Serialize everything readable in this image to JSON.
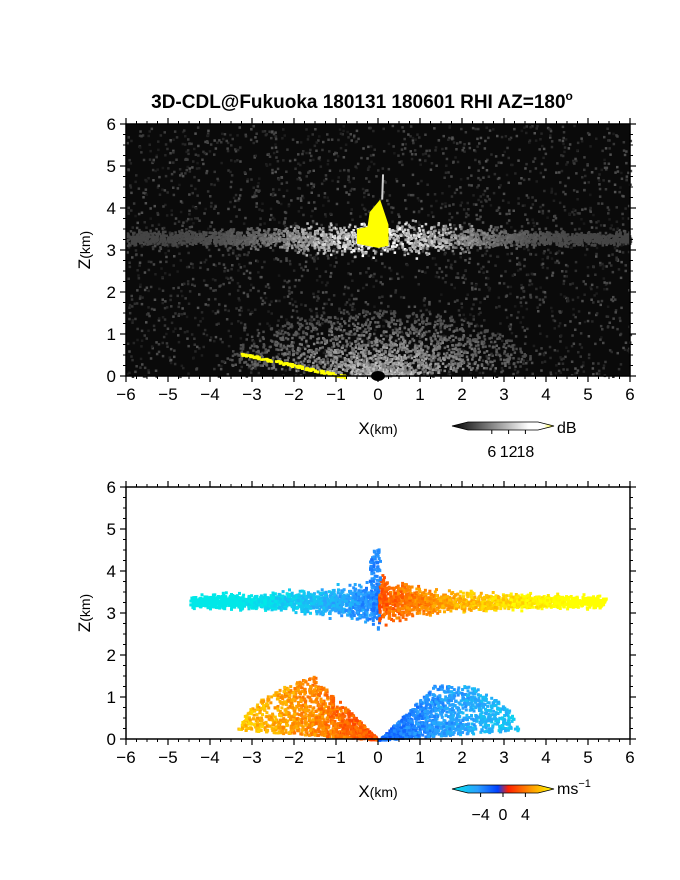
{
  "title": "3D-CDL@Fukuoka 180131 180601 RHI AZ=180",
  "title_degree": "o",
  "chart_data": [
    {
      "type": "heatmap",
      "panel": "top",
      "quantity": "backscatter",
      "xlabel_main": "X",
      "xlabel_unit": "(km)",
      "ylabel_main": "Z",
      "ylabel_unit": "(km)",
      "xlim": [
        -6,
        6
      ],
      "ylim": [
        0,
        6
      ],
      "xticks": [
        -6,
        -5,
        -4,
        -3,
        -2,
        -1,
        0,
        1,
        2,
        3,
        4,
        5,
        6
      ],
      "yticks": [
        0,
        1,
        2,
        3,
        4,
        5,
        6
      ],
      "colorbar": {
        "unit": "dB",
        "ticks": [
          6,
          12,
          18
        ],
        "range": [
          0,
          20
        ],
        "colors": [
          "#000000",
          "#ffffff",
          "#ffff00"
        ]
      },
      "features": [
        {
          "name": "cloud layer",
          "x_range": [
            -6,
            6
          ],
          "z_center": 3.3,
          "thickness": 0.5,
          "value_db": 10
        },
        {
          "name": "saturated core",
          "x_range": [
            -0.5,
            0.3
          ],
          "z_range": [
            3.1,
            4.2
          ],
          "value_db": 20
        },
        {
          "name": "near-surface fan",
          "x_range": [
            -3.5,
            3.5
          ],
          "z_range": [
            0,
            1.6
          ],
          "value_db": 8
        },
        {
          "name": "saturated ground return",
          "x_range": [
            -3.3,
            -0.8
          ],
          "z_range": [
            0,
            0.55
          ],
          "value_db": 20
        }
      ]
    },
    {
      "type": "heatmap",
      "panel": "bottom",
      "quantity": "radial velocity",
      "xlabel_main": "X",
      "xlabel_unit": "(km)",
      "ylabel_main": "Z",
      "ylabel_unit": "(km)",
      "xlim": [
        -6,
        6
      ],
      "ylim": [
        0,
        6
      ],
      "xticks": [
        -6,
        -5,
        -4,
        -3,
        -2,
        -1,
        0,
        1,
        2,
        3,
        4,
        5,
        6
      ],
      "yticks": [
        0,
        1,
        2,
        3,
        4,
        5,
        6
      ],
      "colorbar": {
        "unit": "ms",
        "unit_exp": "−1",
        "ticks": [
          "−4",
          "0",
          "4"
        ],
        "range": [
          -5,
          5
        ],
        "colors": [
          "#00e0e0",
          "#0050ff",
          "#ff2000",
          "#ffff00"
        ]
      },
      "features": [
        {
          "name": "upper layer west",
          "x_range": [
            -4.5,
            0
          ],
          "z_range": [
            2.7,
            4.0
          ],
          "velocity": -3.5
        },
        {
          "name": "upper layer east",
          "x_range": [
            0,
            5.4
          ],
          "z_range": [
            2.7,
            4.0
          ],
          "velocity": 3.0
        },
        {
          "name": "lower layer west",
          "x_range": [
            -3.4,
            0
          ],
          "z_range": [
            0,
            1.7
          ],
          "velocity": 2.5
        },
        {
          "name": "lower layer east",
          "x_range": [
            0,
            3.5
          ],
          "z_range": [
            0,
            1.3
          ],
          "velocity": -2.5
        }
      ]
    }
  ]
}
